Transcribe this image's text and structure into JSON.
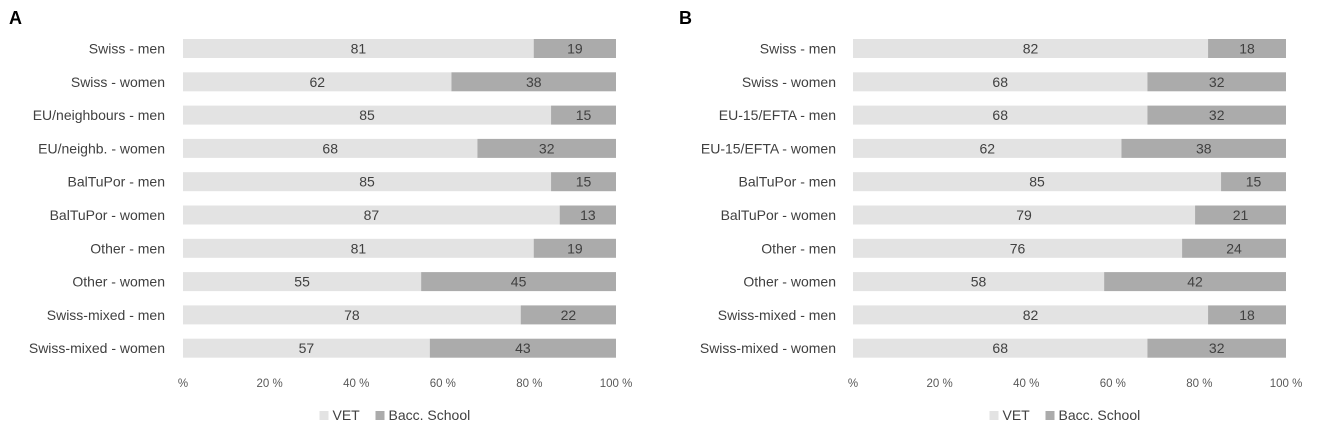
{
  "colors": {
    "vet": "#e3e3e3",
    "bacc": "#ababab",
    "text": "#404040"
  },
  "chart_data": [
    {
      "type": "bar",
      "orientation": "horizontal",
      "stacked": true,
      "panel": "A",
      "categories": [
        "Swiss - men",
        "Swiss - women",
        "EU/neighbours - men",
        "EU/neighb. - women",
        "BalTuPor - men",
        "BalTuPor - women",
        "Other - men",
        "Other - women",
        "Swiss-mixed - men",
        "Swiss-mixed - women"
      ],
      "series": [
        {
          "name": "VET",
          "values": [
            81,
            62,
            85,
            68,
            85,
            87,
            81,
            55,
            78,
            57
          ]
        },
        {
          "name": "Bacc. School",
          "values": [
            19,
            38,
            15,
            32,
            15,
            13,
            19,
            45,
            22,
            43
          ]
        }
      ],
      "xticks": [
        "%",
        "20 %",
        "40 %",
        "60 %",
        "80 %",
        "100 %"
      ],
      "xlim": [
        0,
        100
      ],
      "legend": [
        "VET",
        "Bacc. School"
      ],
      "legend_position": "bottom"
    },
    {
      "type": "bar",
      "orientation": "horizontal",
      "stacked": true,
      "panel": "B",
      "categories": [
        "Swiss - men",
        "Swiss - women",
        "EU-15/EFTA - men",
        "EU-15/EFTA - women",
        "BalTuPor - men",
        "BalTuPor - women",
        "Other - men",
        "Other - women",
        "Swiss-mixed - men",
        "Swiss-mixed - women"
      ],
      "series": [
        {
          "name": "VET",
          "values": [
            82,
            68,
            68,
            62,
            85,
            79,
            76,
            58,
            82,
            68
          ]
        },
        {
          "name": "Bacc. School",
          "values": [
            18,
            32,
            32,
            38,
            15,
            21,
            24,
            42,
            18,
            32
          ]
        }
      ],
      "xticks": [
        "%",
        "20 %",
        "40 %",
        "60 %",
        "80 %",
        "100 %"
      ],
      "xlim": [
        0,
        100
      ],
      "legend": [
        "VET",
        "Bacc. School"
      ],
      "legend_position": "bottom"
    }
  ]
}
